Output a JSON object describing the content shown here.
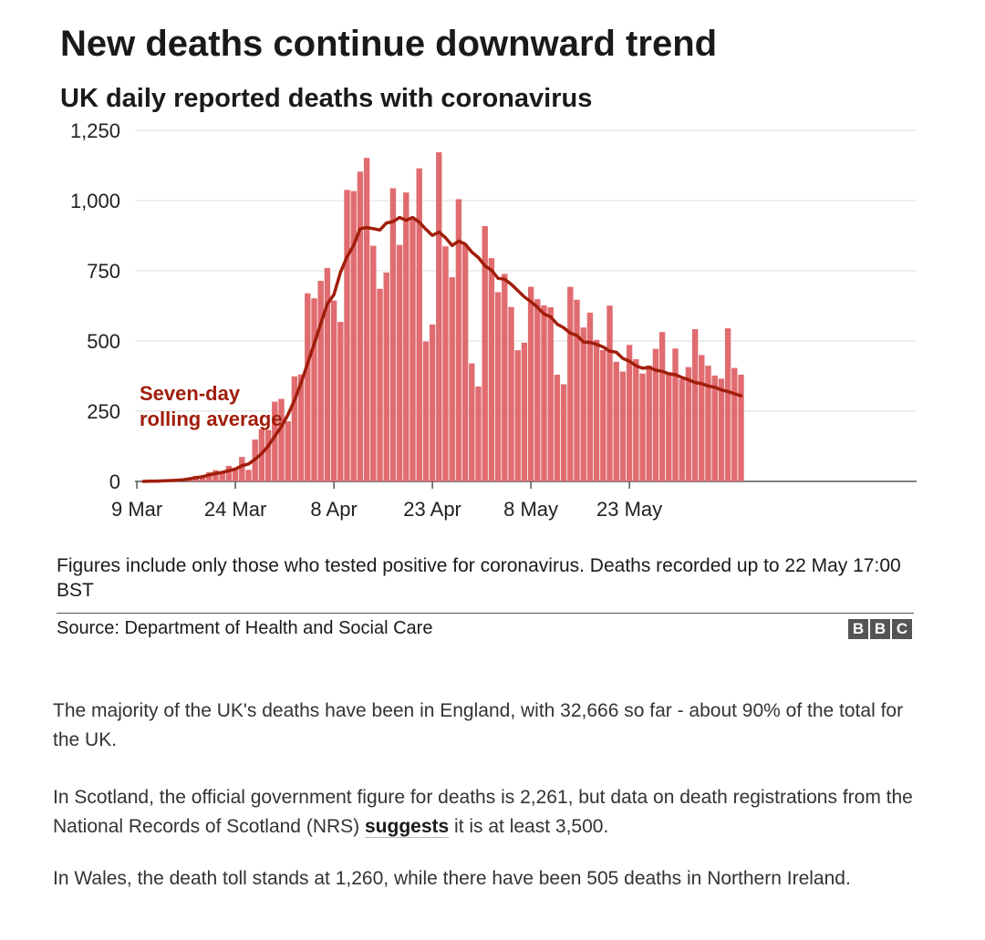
{
  "header": {
    "title": "New deaths continue downward trend",
    "subtitle": "UK daily reported deaths with coronavirus"
  },
  "chart_data": {
    "type": "bar",
    "x_start": "1 Mar",
    "x_tick_labels": [
      "9 Mar",
      "24 Mar",
      "8 Apr",
      "23 Apr",
      "8 May",
      "23 May"
    ],
    "y_tick_labels": [
      "0",
      "250",
      "500",
      "750",
      "1,000",
      "1,250"
    ],
    "ylim": [
      0,
      1250
    ],
    "grid": true,
    "series": [
      {
        "name": "Daily deaths",
        "kind": "bar",
        "color": "#e06c70",
        "values": [
          0,
          0,
          0,
          0,
          0,
          0,
          0,
          0,
          0,
          0,
          0,
          1,
          2,
          2,
          1,
          10,
          14,
          20,
          16,
          33,
          40,
          33,
          55,
          48,
          87,
          41,
          149,
          186,
          183,
          284,
          294,
          214,
          374,
          381,
          670,
          652,
          714,
          760,
          644,
          568,
          1038,
          1034,
          1103,
          1152,
          839,
          686,
          744,
          1044,
          842,
          1029,
          935,
          1115,
          498,
          559,
          1172,
          837,
          727,
          1005,
          843,
          420,
          338,
          909,
          795,
          674,
          739,
          621,
          467,
          494,
          693,
          649,
          627,
          620,
          380,
          346,
          693,
          647,
          548,
          601,
          504,
          468,
          626,
          426,
          391,
          486,
          435,
          384,
          413,
          472,
          532,
          389,
          473,
          364,
          407,
          542,
          450,
          412,
          377,
          366,
          545,
          404,
          380
        ]
      },
      {
        "name": "Seven-day rolling average",
        "kind": "line",
        "color": "#a11e0b",
        "values": [
          null,
          null,
          null,
          null,
          null,
          null,
          null,
          null,
          null,
          0,
          1,
          1,
          2,
          3,
          4,
          6,
          9,
          13,
          17,
          23,
          28,
          32,
          38,
          44,
          56,
          62,
          79,
          99,
          126,
          161,
          195,
          237,
          289,
          351,
          420,
          490,
          562,
          632,
          665,
          744,
          800,
          840,
          900,
          904,
          900,
          895,
          920,
          925,
          940,
          930,
          940,
          923,
          898,
          876,
          888,
          868,
          840,
          856,
          845,
          817,
          797,
          768,
          752,
          723,
          720,
          702,
          680,
          657,
          640,
          620,
          596,
          586,
          560,
          547,
          528,
          520,
          496,
          495,
          488,
          479,
          464,
          460,
          438,
          428,
          412,
          403,
          406,
          396,
          392,
          383,
          380,
          370,
          362,
          352,
          348,
          340,
          335,
          326,
          320,
          312,
          305
        ]
      }
    ],
    "annotation": [
      "Seven-day",
      "rolling average"
    ]
  },
  "footnote": {
    "text": "Figures include only those who tested positive for coronavirus. Deaths recorded up to 22 May 17:00 BST",
    "source": "Source: Department of Health and Social Care",
    "logo_letters": [
      "B",
      "B",
      "C"
    ]
  },
  "article": {
    "p1": "The majority of the UK's deaths have been in England, with 32,666 so far - about 90% of the total for the UK.",
    "p2_before": "In Scotland, the official government figure for deaths is 2,261, but data on death registrations from the National Records of Scotland (NRS) ",
    "p2_link": "suggests",
    "p2_after": " it is at least 3,500.",
    "p3": "In Wales, the death toll stands at 1,260, while there have been 505 deaths in Northern Ireland."
  }
}
